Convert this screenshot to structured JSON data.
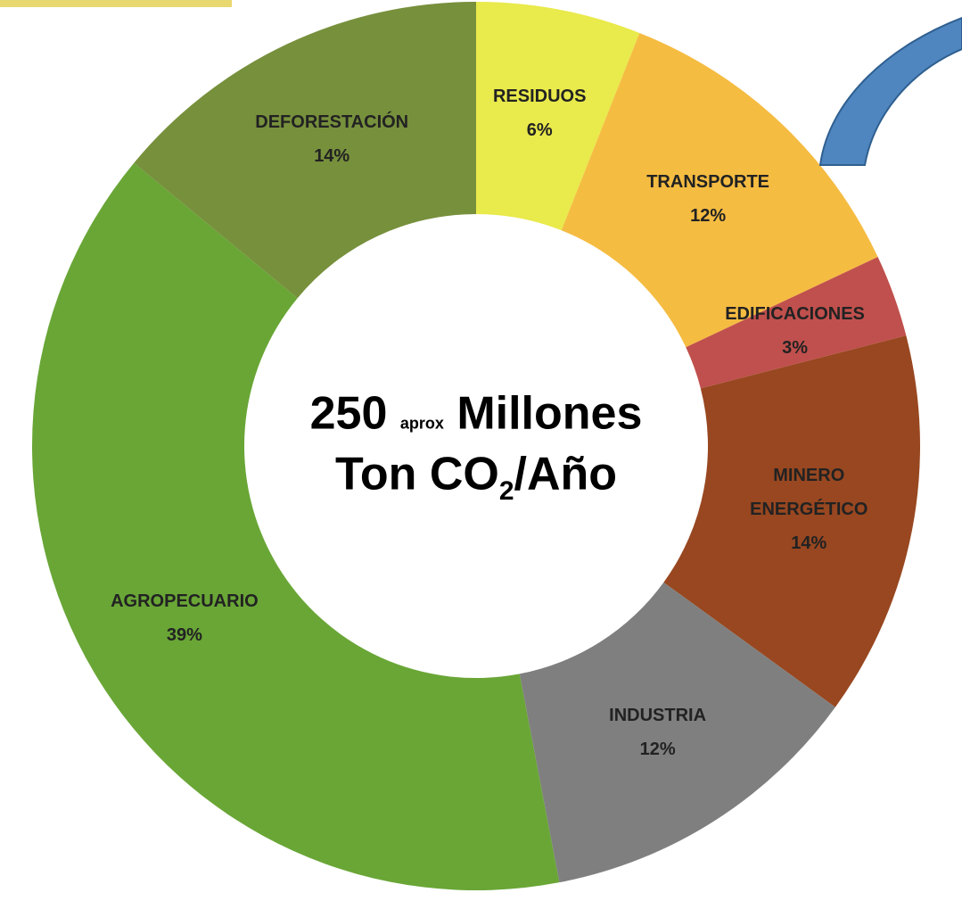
{
  "chart_data": {
    "type": "donut",
    "categories": [
      "RESIDUOS",
      "TRANSPORTE",
      "EDIFICACIONES",
      "MINERO ENERGÉTICO",
      "INDUSTRIA",
      "AGROPECUARIO",
      "DEFORESTACIÓN"
    ],
    "values": [
      6,
      12,
      3,
      14,
      12,
      39,
      14
    ],
    "value_labels": [
      "6%",
      "12%",
      "3%",
      "14%",
      "12%",
      "39%",
      "14%"
    ],
    "colors": [
      "#e9ea4b",
      "#f5bc42",
      "#c0504d",
      "#984720",
      "#7f7f7f",
      "#69a636",
      "#77903c"
    ],
    "center_text": {
      "number": "250",
      "small": "aprox",
      "unit": "Millones",
      "line2": "Ton CO",
      "subscript": "2",
      "line2_end": "/Año"
    }
  }
}
